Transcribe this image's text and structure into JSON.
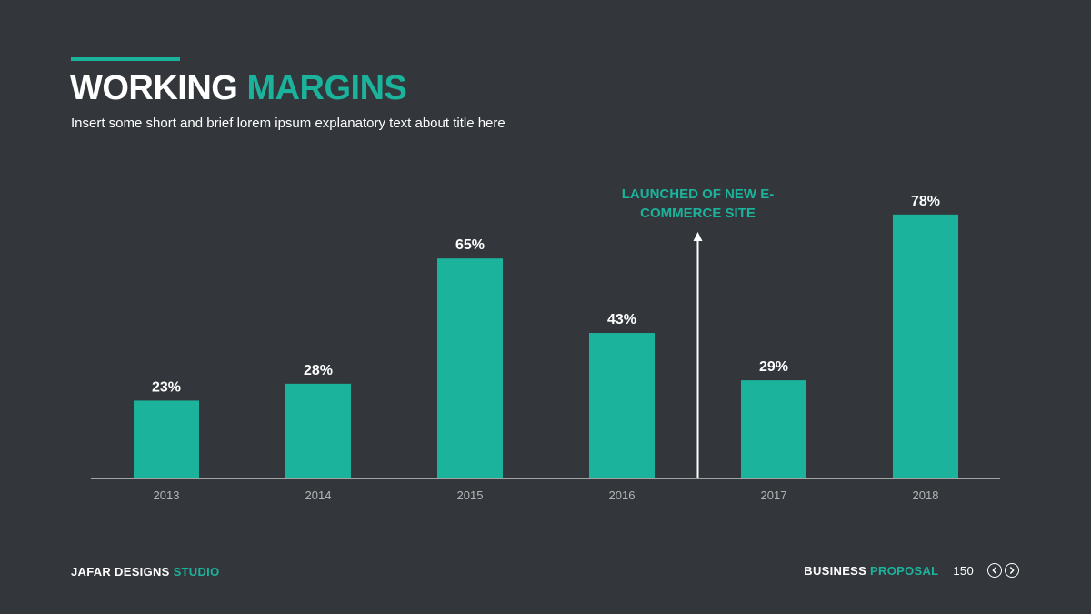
{
  "title": {
    "part1": "WORKING",
    "part2": "MARGINS"
  },
  "subtitle": "Insert some short and brief lorem ipsum explanatory text about title here",
  "chart_data": {
    "type": "bar",
    "categories": [
      "2013",
      "2014",
      "2015",
      "2016",
      "2017",
      "2018"
    ],
    "values": [
      23,
      28,
      65,
      43,
      29,
      78
    ],
    "labels": [
      "23%",
      "28%",
      "65%",
      "43%",
      "29%",
      "78%"
    ],
    "value_unit": "%",
    "ylim": [
      0,
      100
    ],
    "grid": false,
    "annotation": {
      "text": "LAUNCHED OF NEW E-COMMERCE SITE",
      "lines": [
        "LAUNCHED OF NEW E-",
        "COMMERCE SITE"
      ],
      "between_categories": [
        "2016",
        "2017"
      ]
    },
    "colors": {
      "bar": "#1bb39c",
      "axis": "#c8c8c8",
      "label": "#ffffff",
      "tick": "#b4b4b4",
      "annotation": "#1bb39c"
    }
  },
  "footer": {
    "left_part1": "JAFAR DESIGNS",
    "left_part2": "STUDIO",
    "right_part1": "BUSINESS",
    "right_part2": "PROPOSAL",
    "page_number": "150"
  },
  "nav": {
    "prev_icon": "chevron-left-circle",
    "next_icon": "chevron-right-circle"
  },
  "colors": {
    "background": "#33373b",
    "accent": "#1bb39c",
    "text": "#ffffff"
  }
}
